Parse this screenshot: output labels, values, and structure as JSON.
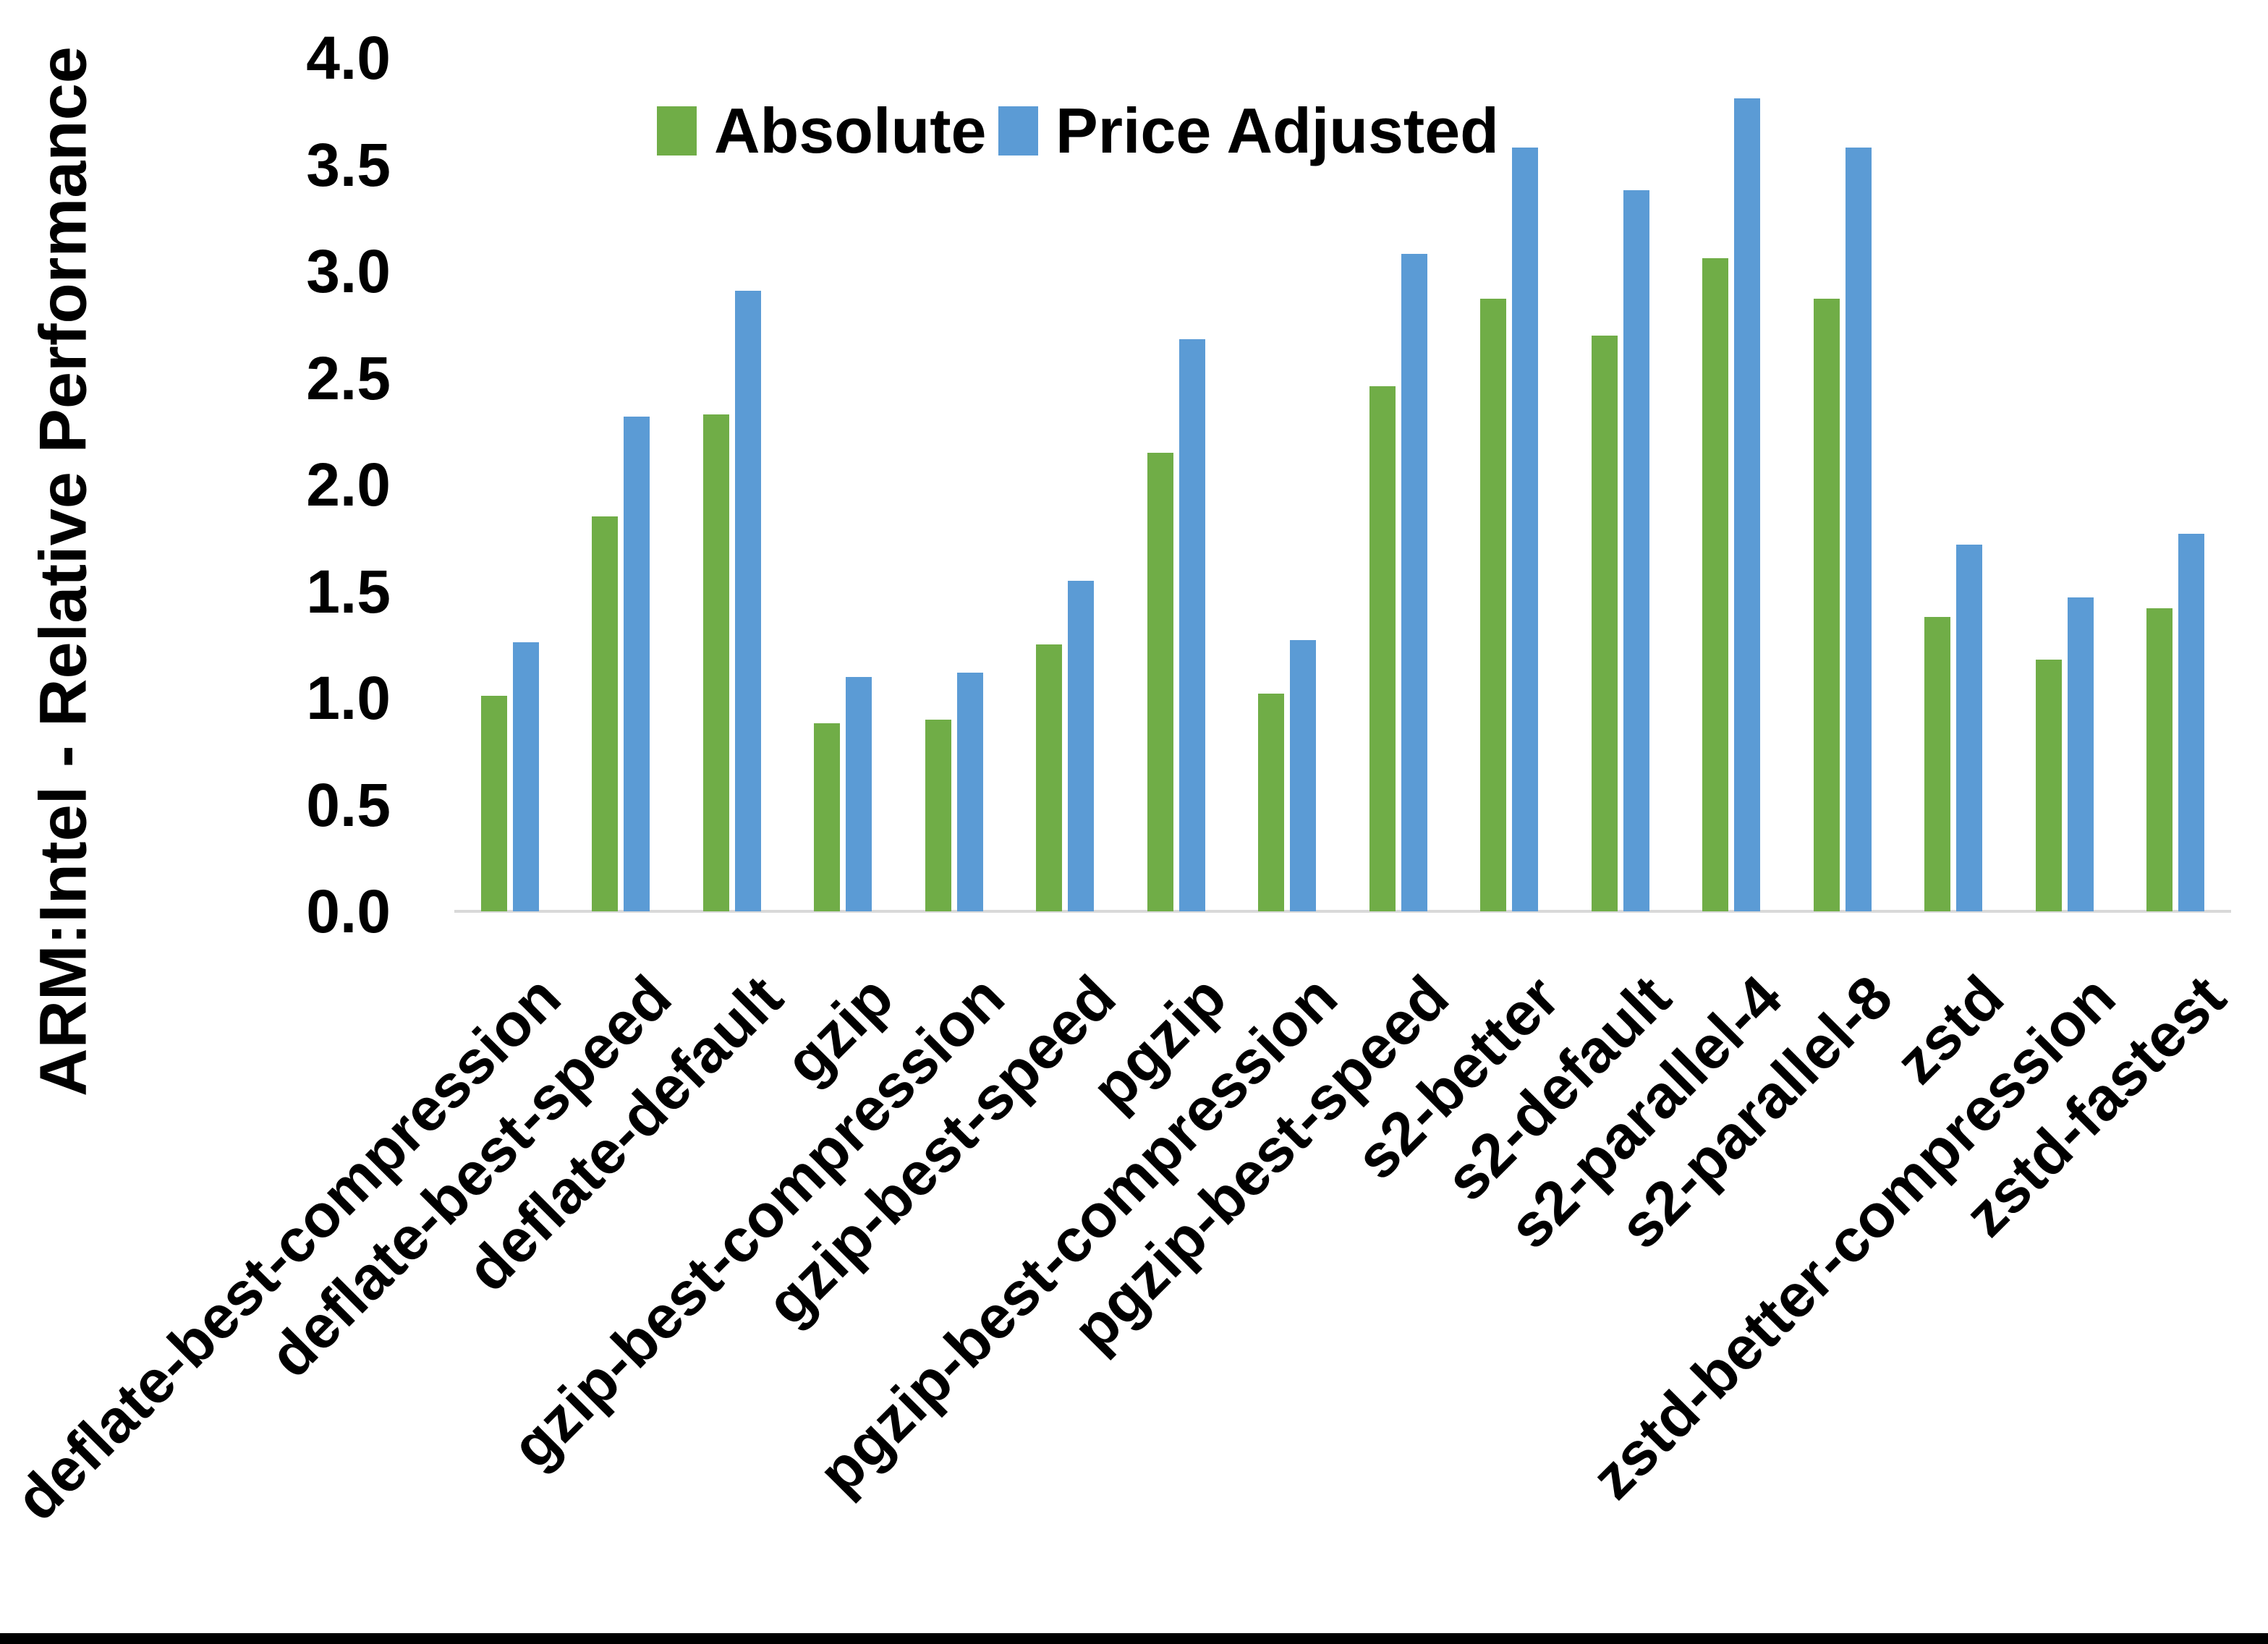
{
  "chart_data": {
    "type": "bar",
    "title": "",
    "xlabel": "",
    "ylabel": "ARM:Intel - Relative Performance",
    "ylim": [
      0.0,
      4.0
    ],
    "yticks": [
      "0.0",
      "0.5",
      "1.0",
      "1.5",
      "2.0",
      "2.5",
      "3.0",
      "3.5",
      "4.0"
    ],
    "grid": false,
    "legend_position": "top",
    "axis_line_color": "#D9D9D9",
    "categories": [
      "deflate-best-compression",
      "deflate-best-speed",
      "deflate-default",
      "gzip",
      "gzip-best-compression",
      "gzip-best-speed",
      "pgzip",
      "pgzip-best-compression",
      "pgzip-best-speed",
      "s2-better",
      "s2-default",
      "s2-parallel-4",
      "s2-parallel-8",
      "zstd",
      "zstd-better-compression",
      "zstd-fastest"
    ],
    "series": [
      {
        "name": "Absolute",
        "color": "#70AD47",
        "values": [
          1.01,
          1.85,
          2.33,
          0.88,
          0.9,
          1.25,
          2.15,
          1.02,
          2.46,
          2.87,
          2.7,
          3.06,
          2.87,
          1.38,
          1.18,
          1.42
        ]
      },
      {
        "name": "Price Adjusted",
        "color": "#5B9BD5",
        "values": [
          1.26,
          2.32,
          2.91,
          1.1,
          1.12,
          1.55,
          2.68,
          1.27,
          3.08,
          3.58,
          3.38,
          3.81,
          3.58,
          1.72,
          1.47,
          1.77
        ]
      }
    ]
  },
  "footer": {
    "bar_color": "#000000"
  }
}
